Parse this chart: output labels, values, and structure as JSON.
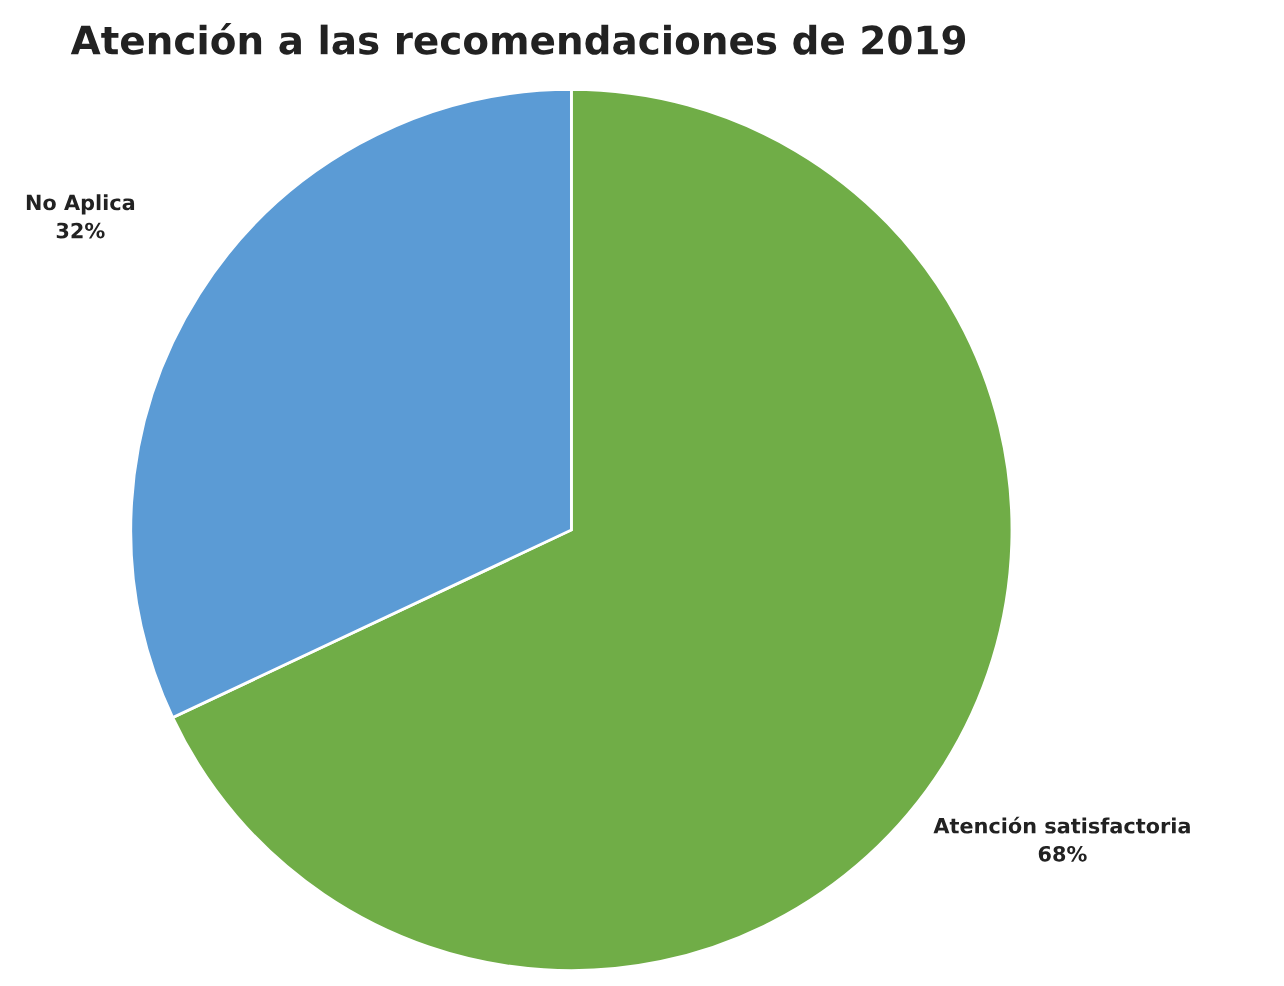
{
  "chart_data": {
    "type": "pie",
    "title": "Atención a las recomendaciones de 2019",
    "categories": [
      "Atención satisfactoria",
      "No Aplica"
    ],
    "values": [
      68,
      32
    ],
    "colors": [
      "#70ad47",
      "#5b9bd5"
    ],
    "value_labels": [
      "68%",
      "32%"
    ],
    "legend": false
  }
}
